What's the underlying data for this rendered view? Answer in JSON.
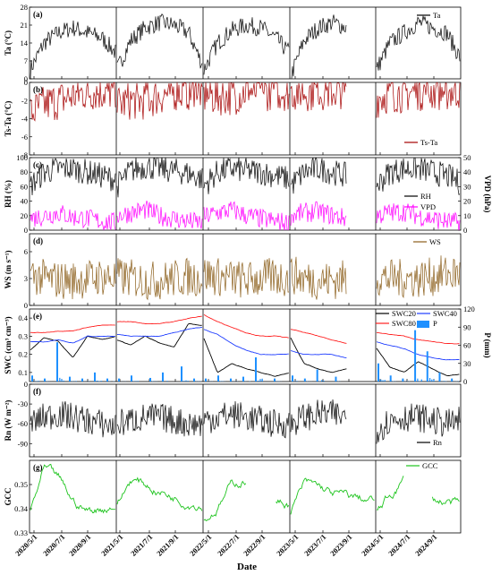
{
  "figure": {
    "xlabel": "Date",
    "x_ticks": [
      "2020/5/1",
      "2020/7/1",
      "2020/9/1",
      "2021/5/1",
      "2021/7/1",
      "2021/9/1",
      "2022/5/1",
      "2022/7/1",
      "2022/9/1",
      "2023/5/1",
      "2023/7/1",
      "2023/9/1",
      "2024/5/1",
      "2024/7/1",
      "2024/9/1"
    ],
    "season_breaks": [
      "2021/5/1",
      "2022/5/1",
      "2023/5/1",
      "2024/5/1"
    ]
  },
  "chart_data": [
    {
      "panel": "(a)",
      "type": "line",
      "ylabel": "Ta (°C)",
      "yticks": [
        "0",
        "7",
        "14",
        "21",
        "28"
      ],
      "ylim": [
        0,
        28
      ],
      "series": [
        {
          "name": "Ta",
          "color": "#000000",
          "style": "seasonal",
          "values": [
            [
              3,
              14,
              18,
              20,
              18,
              16,
              10
            ],
            [
              3,
              15,
              20,
              22,
              21,
              18,
              5
            ],
            [
              3,
              14,
              19,
              21,
              20,
              16,
              10
            ],
            [
              0,
              15,
              20,
              22,
              20,
              null,
              null
            ],
            [
              3,
              14,
              18,
              22,
              20,
              18,
              8
            ]
          ]
        }
      ]
    },
    {
      "panel": "(b)",
      "type": "line",
      "ylabel": "Ts-Ta (°C)",
      "yticks": [
        "0",
        "-2",
        "-4",
        "-6",
        "-8"
      ],
      "ylim": [
        -8,
        0
      ],
      "series": [
        {
          "name": "Ts-Ta",
          "color": "#a50000",
          "style": "seasonal",
          "values": [
            [
              -3.5,
              -2.5,
              -2,
              -1.5,
              -1,
              -1,
              -1
            ],
            [
              -2.5,
              -2,
              -2,
              -1.5,
              -1,
              -1,
              -1
            ],
            [
              -1.5,
              -1.5,
              -1.5,
              -1,
              -1,
              -1,
              -1
            ],
            [
              -1,
              -1,
              -1,
              -1,
              -0.6,
              null,
              null
            ],
            [
              -1.8,
              -1.2,
              -1.2,
              -1,
              -1,
              -1,
              -0.8
            ]
          ]
        }
      ]
    },
    {
      "panel": "(c)",
      "type": "line",
      "ylabel": "RH (%)",
      "ylabel_right": "VPD (hPa)",
      "yticks": [
        "0",
        "20",
        "40",
        "60",
        "80",
        "100"
      ],
      "ylim": [
        0,
        100
      ],
      "yticks_right": [
        "0",
        "10",
        "20",
        "30",
        "40",
        "50"
      ],
      "ylim_right": [
        0,
        50
      ],
      "series": [
        {
          "name": "RH",
          "color": "#000000",
          "style": "seasonal",
          "values": [
            [
              60,
              80,
              85,
              85,
              80,
              75,
              70
            ],
            [
              60,
              82,
              88,
              85,
              82,
              78,
              70
            ],
            [
              60,
              80,
              85,
              82,
              80,
              75,
              70
            ],
            [
              60,
              80,
              85,
              80,
              75,
              null,
              null
            ],
            [
              60,
              80,
              85,
              85,
              80,
              75,
              65
            ]
          ]
        },
        {
          "name": "VPD",
          "color": "#ff00ff",
          "style": "seasonal",
          "axis": "right",
          "values": [
            [
              8,
              10,
              12,
              9,
              8,
              6,
              5
            ],
            [
              10,
              12,
              14,
              10,
              8,
              6,
              5
            ],
            [
              9,
              12,
              14,
              10,
              8,
              6,
              5
            ],
            [
              10,
              12,
              13,
              10,
              8,
              null,
              null
            ],
            [
              10,
              12,
              13,
              10,
              8,
              6,
              5
            ]
          ]
        }
      ]
    },
    {
      "panel": "(d)",
      "type": "line",
      "ylabel": "WS (m s⁻¹)",
      "yticks": [
        "0",
        "3",
        "6"
      ],
      "ylim": [
        0,
        8
      ],
      "series": [
        {
          "name": "WS",
          "color": "#8b5e1a",
          "style": "seasonal",
          "values": [
            [
              3.5,
              3,
              2.8,
              2.8,
              3,
              3.2,
              3
            ],
            [
              3.2,
              3,
              2.8,
              2.8,
              3,
              3.2,
              3
            ],
            [
              3.5,
              3.2,
              3,
              2.8,
              3,
              3.2,
              3
            ],
            [
              3.5,
              3,
              2.8,
              2.8,
              3,
              null,
              null
            ],
            [
              3.2,
              3,
              3,
              3,
              3.2,
              3.5,
              3.5
            ]
          ]
        }
      ]
    },
    {
      "panel": "(e)",
      "type": "line",
      "ylabel": "SWC (cm³ cm⁻³)",
      "ylabel_right": "P (mm)",
      "yticks": [
        "0.1",
        "0.2",
        "0.3",
        "0.4"
      ],
      "ylim": [
        0.05,
        0.45
      ],
      "yticks_right": [
        "0",
        "30",
        "60",
        "90",
        "120"
      ],
      "ylim_right": [
        0,
        120
      ],
      "series": [
        {
          "name": "SWC20",
          "color": "#000000",
          "style": "smooth",
          "values": [
            [
              0.22,
              0.29,
              0.27,
              0.18,
              0.3,
              0.28,
              0.3
            ],
            [
              0.28,
              0.25,
              0.3,
              0.26,
              0.24,
              0.37,
              0.36
            ],
            [
              0.3,
              0.1,
              0.15,
              0.12,
              0.1,
              0.08,
              0.1
            ],
            [
              0.3,
              0.15,
              0.12,
              0.1,
              0.12,
              null,
              null
            ],
            [
              0.24,
              0.13,
              0.1,
              0.16,
              0.12,
              0.08,
              0.09
            ]
          ]
        },
        {
          "name": "SWC40",
          "color": "#1f3dff",
          "style": "smooth",
          "values": [
            [
              0.27,
              0.27,
              0.28,
              0.26,
              0.3,
              0.3,
              0.3
            ],
            [
              0.31,
              0.3,
              0.3,
              0.3,
              0.32,
              0.34,
              0.35
            ],
            [
              0.34,
              0.31,
              0.26,
              0.22,
              0.2,
              0.2,
              0.2
            ],
            [
              0.22,
              0.2,
              0.2,
              0.2,
              0.18,
              null,
              null
            ],
            [
              0.27,
              0.25,
              0.23,
              0.2,
              0.18,
              0.17,
              0.17
            ]
          ]
        },
        {
          "name": "SWC80",
          "color": "#ff2020",
          "style": "smooth",
          "values": [
            [
              0.32,
              0.32,
              0.33,
              0.33,
              0.35,
              0.36,
              0.36
            ],
            [
              0.38,
              0.38,
              0.37,
              0.37,
              0.38,
              0.4,
              0.41
            ],
            [
              0.42,
              0.38,
              0.35,
              0.32,
              0.3,
              0.3,
              0.29
            ],
            [
              0.34,
              0.32,
              0.3,
              0.28,
              0.26,
              null,
              null
            ],
            [
              0.32,
              0.31,
              0.3,
              0.28,
              0.27,
              0.26,
              0.26
            ]
          ]
        },
        {
          "name": "P",
          "color": "#1e90ff",
          "style": "bars",
          "axis": "right",
          "values": [
            [
              10,
              0,
              5,
              0,
              65,
              0,
              8,
              0,
              5,
              0,
              15,
              0,
              5,
              0
            ],
            [
              5,
              0,
              10,
              0,
              0,
              6,
              0,
              15,
              0,
              0,
              25,
              0,
              5,
              0
            ],
            [
              5,
              0,
              10,
              0,
              5,
              0,
              8,
              0,
              40,
              0,
              0,
              5,
              0,
              0
            ],
            [
              10,
              0,
              5,
              0,
              20,
              0,
              0,
              8,
              0,
              0,
              0,
              0,
              0,
              0
            ],
            [
              30,
              0,
              10,
              0,
              5,
              0,
              85,
              0,
              50,
              0,
              15,
              0,
              5,
              0
            ]
          ]
        }
      ]
    },
    {
      "panel": "(f)",
      "type": "line",
      "ylabel": "Rn (W m⁻²)",
      "yticks": [
        "-90",
        "-60",
        "-30",
        "0"
      ],
      "ylim": [
        -110,
        0
      ],
      "series": [
        {
          "name": "Rn",
          "color": "#000000",
          "style": "seasonal",
          "values": [
            [
              -60,
              -50,
              -45,
              -50,
              -55,
              -60,
              -65
            ],
            [
              -60,
              -55,
              -50,
              -50,
              -55,
              -60,
              -60
            ],
            [
              -55,
              -50,
              -45,
              -50,
              -55,
              -60,
              -60
            ],
            [
              -60,
              -50,
              -45,
              -45,
              -50,
              null,
              null
            ],
            [
              -70,
              -55,
              -50,
              -50,
              -55,
              -60,
              -55
            ]
          ]
        }
      ]
    },
    {
      "panel": "(g)",
      "type": "line",
      "ylabel": "GCC",
      "yticks": [
        "0.33",
        "0.34",
        "0.35"
      ],
      "ylim": [
        0.33,
        0.36
      ],
      "series": [
        {
          "name": "GCC",
          "color": "#1ec41e",
          "style": "smooth",
          "values": [
            [
              0.338,
              0.356,
              0.352,
              0.343,
              0.339,
              0.34,
              0.342
            ],
            [
              0.34,
              0.352,
              0.35,
              0.347,
              0.345,
              0.343,
              0.342
            ],
            [
              0.334,
              0.34,
              0.35,
              0.352,
              null,
              0.343,
              0.342
            ],
            [
              0.338,
              0.35,
              0.349,
              0.346,
              0.345,
              0.344,
              0.343
            ],
            [
              0.338,
              0.345,
              0.352,
              null,
              0.343,
              0.343,
              0.341
            ]
          ]
        }
      ]
    }
  ]
}
